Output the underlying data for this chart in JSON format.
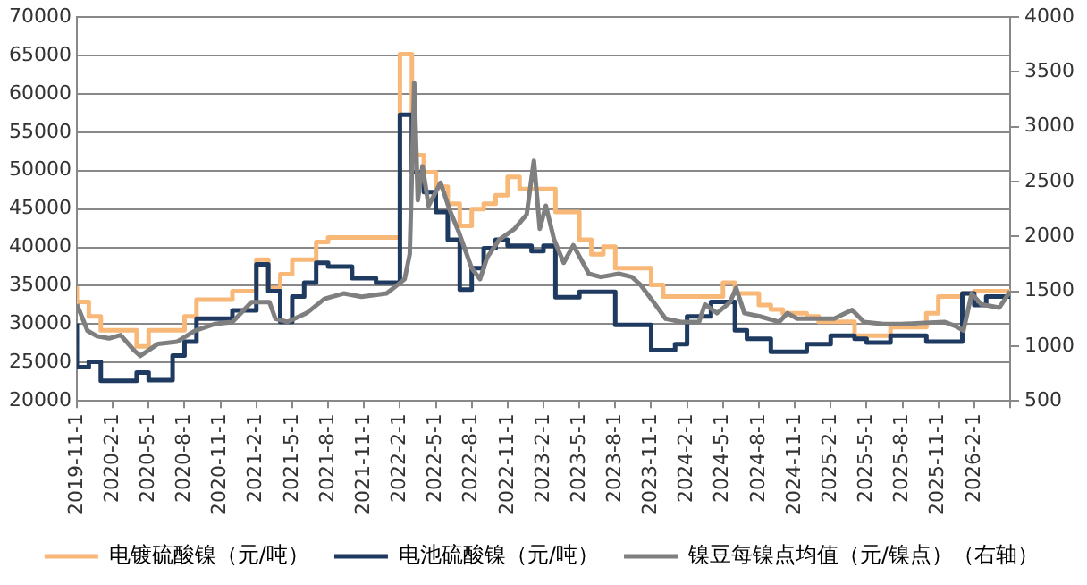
{
  "chart_data": {
    "type": "line",
    "legend": "bottom",
    "grid": "y",
    "marker": "none",
    "line_style": "solid",
    "xlim": [
      "2019-11-01",
      "2026-05-01"
    ],
    "xticks": [
      {
        "value": "2019-11-01",
        "label": "2019-11-1"
      },
      {
        "value": "2020-02-01",
        "label": "2020-2-1"
      },
      {
        "value": "2020-05-01",
        "label": "2020-5-1"
      },
      {
        "value": "2020-08-01",
        "label": "2020-8-1"
      },
      {
        "value": "2020-11-01",
        "label": "2020-11-1"
      },
      {
        "value": "2021-02-01",
        "label": "2021-2-1"
      },
      {
        "value": "2021-05-01",
        "label": "2021-5-1"
      },
      {
        "value": "2021-08-01",
        "label": "2021-8-1"
      },
      {
        "value": "2021-11-01",
        "label": "2021-11-1"
      },
      {
        "value": "2022-02-01",
        "label": "2022-2-1"
      },
      {
        "value": "2022-05-01",
        "label": "2022-5-1"
      },
      {
        "value": "2022-08-01",
        "label": "2022-8-1"
      },
      {
        "value": "2022-11-01",
        "label": "2022-11-1"
      },
      {
        "value": "2023-02-01",
        "label": "2023-2-1"
      },
      {
        "value": "2023-05-01",
        "label": "2023-5-1"
      },
      {
        "value": "2023-08-01",
        "label": "2023-8-1"
      },
      {
        "value": "2023-11-01",
        "label": "2023-11-1"
      },
      {
        "value": "2024-02-01",
        "label": "2024-2-1"
      },
      {
        "value": "2024-05-01",
        "label": "2024-5-1"
      },
      {
        "value": "2024-08-01",
        "label": "2024-8-1"
      },
      {
        "value": "2024-11-01",
        "label": "2024-11-1"
      },
      {
        "value": "2025-02-01",
        "label": "2025-2-1"
      },
      {
        "value": "2025-05-01",
        "label": "2025-5-1"
      },
      {
        "value": "2025-08-01",
        "label": "2025-8-1"
      },
      {
        "value": "2025-11-01",
        "label": "2025-11-1"
      },
      {
        "value": "2026-02-01",
        "label": "2026-2-1"
      },
      {
        "value": "2026-05-01",
        "label": null
      }
    ],
    "ylim": [
      20000,
      70000
    ],
    "yticks": [
      20000,
      25000,
      30000,
      35000,
      40000,
      45000,
      50000,
      55000,
      60000,
      65000,
      70000
    ],
    "y2lim": [
      500,
      4000
    ],
    "y2ticks": [
      500,
      1000,
      1500,
      2000,
      2500,
      3000,
      3500,
      4000
    ],
    "series": [
      {
        "name": "电镀硫酸镍（元/吨）",
        "type": "step",
        "color": "#f8b878",
        "x": [
          "2019-11",
          "2019-12",
          "2020-01",
          "2020-04",
          "2020-05",
          "2020-08",
          "2020-09",
          "2020-12",
          "2021-02",
          "2021-03",
          "2021-04",
          "2021-05",
          "2021-07",
          "2021-08",
          "2022-02",
          "2022-03",
          "2022-04",
          "2022-05",
          "2022-06",
          "2022-07",
          "2022-08",
          "2022-09",
          "2022-10",
          "2022-11",
          "2022-12",
          "2023-03",
          "2023-05",
          "2023-06",
          "2023-07",
          "2023-08",
          "2023-11",
          "2023-12",
          "2024-05",
          "2024-06",
          "2024-08",
          "2024-09",
          "2024-10",
          "2024-12",
          "2025-01",
          "2025-04",
          "2025-07",
          "2025-10",
          "2025-11",
          "2026-01",
          "2026-02",
          "2026-05"
        ],
        "values": [
          34900,
          32900,
          31000,
          29200,
          27100,
          29200,
          31000,
          33200,
          34300,
          38400,
          34700,
          36500,
          38400,
          40700,
          41300,
          65200,
          52000,
          49800,
          47900,
          45700,
          42800,
          45000,
          45700,
          46800,
          49200,
          47600,
          44600,
          41000,
          39100,
          40100,
          37300,
          35100,
          33600,
          35400,
          34000,
          32500,
          31900,
          31400,
          31000,
          30300,
          28500,
          29600,
          31400,
          33600,
          34000,
          34300
        ]
      },
      {
        "name": "电池硫酸镍（元/吨）",
        "type": "step",
        "color": "#1f3a60",
        "x": [
          "2019-11",
          "2019-12",
          "2020-01",
          "2020-04",
          "2020-05",
          "2020-07",
          "2020-08",
          "2020-09",
          "2020-12",
          "2021-02",
          "2021-03",
          "2021-04",
          "2021-05",
          "2021-06",
          "2021-07",
          "2021-08",
          "2021-10",
          "2021-12",
          "2022-02",
          "2022-03",
          "2022-04",
          "2022-05",
          "2022-06",
          "2022-07",
          "2022-08",
          "2022-09",
          "2022-10",
          "2022-11",
          "2023-01",
          "2023-02",
          "2023-03",
          "2023-05",
          "2023-08",
          "2023-11",
          "2024-01",
          "2024-02",
          "2024-04",
          "2024-06",
          "2024-07",
          "2024-09",
          "2024-12",
          "2025-02",
          "2025-04",
          "2025-05",
          "2025-07",
          "2025-10",
          "2026-01",
          "2026-02",
          "2026-03",
          "2026-05"
        ],
        "values": [
          30100,
          24400,
          25100,
          22600,
          23700,
          22700,
          25900,
          27700,
          30700,
          31800,
          37800,
          34300,
          30300,
          33600,
          35400,
          38000,
          37500,
          36000,
          35400,
          57300,
          49800,
          47200,
          44600,
          41000,
          34500,
          37300,
          39900,
          41000,
          40200,
          39500,
          40200,
          33500,
          34200,
          29900,
          26600,
          27400,
          31000,
          32900,
          29200,
          28100,
          26400,
          27400,
          28500,
          28100,
          27600,
          28500,
          27700,
          34000,
          32500,
          33600
        ]
      },
      {
        "name": "镍豆每镍点均值（元/镍点）（右轴）",
        "type": "line",
        "axis": "y2",
        "color": "#7f7f7f",
        "x": [
          "2019-11-01",
          "2019-11-28",
          "2019-12-22",
          "2020-01-22",
          "2020-02-21",
          "2020-03-25",
          "2020-04-10",
          "2020-05-25",
          "2020-07-13",
          "2020-08-28",
          "2020-10-16",
          "2020-12-01",
          "2021-01-19",
          "2021-03-04",
          "2021-03-19",
          "2021-04-19",
          "2021-06-07",
          "2021-07-22",
          "2021-09-10",
          "2021-10-25",
          "2021-12-28",
          "2022-02-13",
          "2022-02-26",
          "2022-03-07",
          "2022-03-16",
          "2022-03-28",
          "2022-04-13",
          "2022-05-13",
          "2022-06-07",
          "2022-06-28",
          "2022-08-01",
          "2022-08-22",
          "2022-09-10",
          "2022-10-10",
          "2022-11-19",
          "2022-12-19",
          "2023-01-07",
          "2023-01-22",
          "2023-02-07",
          "2023-02-28",
          "2023-03-22",
          "2023-04-16",
          "2023-05-10",
          "2023-05-25",
          "2023-06-25",
          "2023-08-10",
          "2023-09-13",
          "2023-10-04",
          "2023-11-07",
          "2023-12-07",
          "2024-01-16",
          "2024-03-01",
          "2024-03-16",
          "2024-04-16",
          "2024-05-19",
          "2024-06-04",
          "2024-06-25",
          "2024-08-04",
          "2024-09-22",
          "2024-10-13",
          "2024-11-07",
          "2024-12-22",
          "2025-02-10",
          "2025-03-25",
          "2025-04-25",
          "2025-06-13",
          "2025-07-28",
          "2025-09-16",
          "2025-11-16",
          "2025-12-16",
          "2026-01-04",
          "2026-01-25",
          "2026-02-19",
          "2026-04-04",
          "2026-05-01"
        ],
        "values": [
          1380,
          1140,
          1090,
          1070,
          1100,
          960,
          910,
          1020,
          1040,
          1140,
          1200,
          1220,
          1400,
          1400,
          1250,
          1220,
          1300,
          1430,
          1480,
          1450,
          1480,
          1610,
          1840,
          3400,
          2330,
          2640,
          2280,
          2490,
          2230,
          2050,
          1710,
          1610,
          1810,
          1970,
          2070,
          2200,
          2690,
          2070,
          2280,
          1970,
          1760,
          1920,
          1760,
          1660,
          1630,
          1660,
          1630,
          1560,
          1400,
          1250,
          1220,
          1220,
          1380,
          1300,
          1400,
          1530,
          1300,
          1270,
          1220,
          1300,
          1250,
          1250,
          1250,
          1330,
          1220,
          1200,
          1200,
          1210,
          1220,
          1180,
          1140,
          1480,
          1380,
          1350,
          1500
        ]
      }
    ]
  }
}
